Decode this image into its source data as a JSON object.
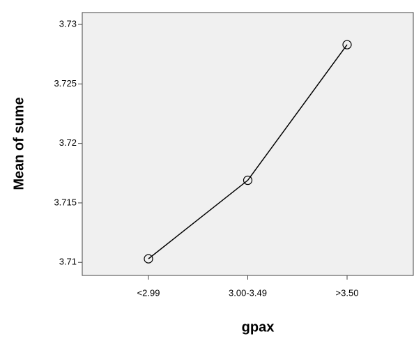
{
  "chart_data": {
    "type": "line",
    "x_label": "gpax",
    "y_label": "Mean of sume",
    "categories": [
      "<2.99",
      "3.00-3.49",
      ">3.50"
    ],
    "series": [
      {
        "color": "#000000",
        "values": [
          3.7103,
          3.7169,
          3.7283
        ]
      }
    ],
    "ylim": [
      3.7089,
      3.731
    ],
    "yticks": [
      3.71,
      3.715,
      3.72,
      3.725,
      3.73
    ]
  }
}
